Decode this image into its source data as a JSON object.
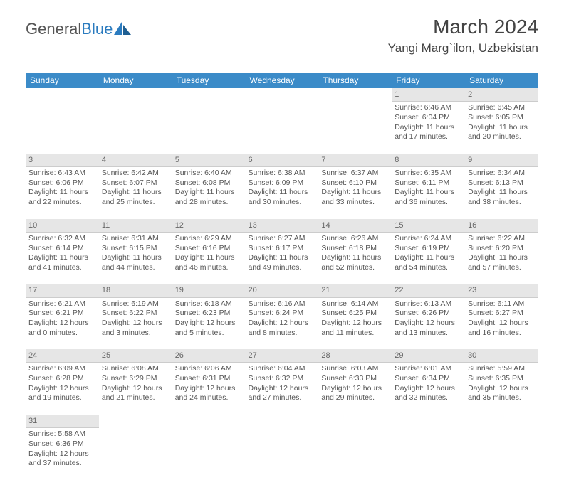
{
  "logo": {
    "text1": "General",
    "text2": "Blue"
  },
  "title": "March 2024",
  "location": "Yangi Marg`ilon, Uzbekistan",
  "colors": {
    "header_bg": "#3b8bc8",
    "header_fg": "#ffffff",
    "daynum_bg": "#e6e6e6",
    "text": "#555555",
    "logo_gray": "#555555",
    "logo_blue": "#2b7bbf",
    "page_bg": "#ffffff"
  },
  "fonts": {
    "title_size": 28,
    "location_size": 17,
    "dayhead_size": 12,
    "cell_size": 10.5
  },
  "dayHeaders": [
    "Sunday",
    "Monday",
    "Tuesday",
    "Wednesday",
    "Thursday",
    "Friday",
    "Saturday"
  ],
  "weeks": [
    {
      "nums": [
        "",
        "",
        "",
        "",
        "",
        "1",
        "2"
      ],
      "cells": [
        null,
        null,
        null,
        null,
        null,
        {
          "sunrise": "Sunrise: 6:46 AM",
          "sunset": "Sunset: 6:04 PM",
          "day1": "Daylight: 11 hours",
          "day2": "and 17 minutes."
        },
        {
          "sunrise": "Sunrise: 6:45 AM",
          "sunset": "Sunset: 6:05 PM",
          "day1": "Daylight: 11 hours",
          "day2": "and 20 minutes."
        }
      ]
    },
    {
      "nums": [
        "3",
        "4",
        "5",
        "6",
        "7",
        "8",
        "9"
      ],
      "cells": [
        {
          "sunrise": "Sunrise: 6:43 AM",
          "sunset": "Sunset: 6:06 PM",
          "day1": "Daylight: 11 hours",
          "day2": "and 22 minutes."
        },
        {
          "sunrise": "Sunrise: 6:42 AM",
          "sunset": "Sunset: 6:07 PM",
          "day1": "Daylight: 11 hours",
          "day2": "and 25 minutes."
        },
        {
          "sunrise": "Sunrise: 6:40 AM",
          "sunset": "Sunset: 6:08 PM",
          "day1": "Daylight: 11 hours",
          "day2": "and 28 minutes."
        },
        {
          "sunrise": "Sunrise: 6:38 AM",
          "sunset": "Sunset: 6:09 PM",
          "day1": "Daylight: 11 hours",
          "day2": "and 30 minutes."
        },
        {
          "sunrise": "Sunrise: 6:37 AM",
          "sunset": "Sunset: 6:10 PM",
          "day1": "Daylight: 11 hours",
          "day2": "and 33 minutes."
        },
        {
          "sunrise": "Sunrise: 6:35 AM",
          "sunset": "Sunset: 6:11 PM",
          "day1": "Daylight: 11 hours",
          "day2": "and 36 minutes."
        },
        {
          "sunrise": "Sunrise: 6:34 AM",
          "sunset": "Sunset: 6:13 PM",
          "day1": "Daylight: 11 hours",
          "day2": "and 38 minutes."
        }
      ]
    },
    {
      "nums": [
        "10",
        "11",
        "12",
        "13",
        "14",
        "15",
        "16"
      ],
      "cells": [
        {
          "sunrise": "Sunrise: 6:32 AM",
          "sunset": "Sunset: 6:14 PM",
          "day1": "Daylight: 11 hours",
          "day2": "and 41 minutes."
        },
        {
          "sunrise": "Sunrise: 6:31 AM",
          "sunset": "Sunset: 6:15 PM",
          "day1": "Daylight: 11 hours",
          "day2": "and 44 minutes."
        },
        {
          "sunrise": "Sunrise: 6:29 AM",
          "sunset": "Sunset: 6:16 PM",
          "day1": "Daylight: 11 hours",
          "day2": "and 46 minutes."
        },
        {
          "sunrise": "Sunrise: 6:27 AM",
          "sunset": "Sunset: 6:17 PM",
          "day1": "Daylight: 11 hours",
          "day2": "and 49 minutes."
        },
        {
          "sunrise": "Sunrise: 6:26 AM",
          "sunset": "Sunset: 6:18 PM",
          "day1": "Daylight: 11 hours",
          "day2": "and 52 minutes."
        },
        {
          "sunrise": "Sunrise: 6:24 AM",
          "sunset": "Sunset: 6:19 PM",
          "day1": "Daylight: 11 hours",
          "day2": "and 54 minutes."
        },
        {
          "sunrise": "Sunrise: 6:22 AM",
          "sunset": "Sunset: 6:20 PM",
          "day1": "Daylight: 11 hours",
          "day2": "and 57 minutes."
        }
      ]
    },
    {
      "nums": [
        "17",
        "18",
        "19",
        "20",
        "21",
        "22",
        "23"
      ],
      "cells": [
        {
          "sunrise": "Sunrise: 6:21 AM",
          "sunset": "Sunset: 6:21 PM",
          "day1": "Daylight: 12 hours",
          "day2": "and 0 minutes."
        },
        {
          "sunrise": "Sunrise: 6:19 AM",
          "sunset": "Sunset: 6:22 PM",
          "day1": "Daylight: 12 hours",
          "day2": "and 3 minutes."
        },
        {
          "sunrise": "Sunrise: 6:18 AM",
          "sunset": "Sunset: 6:23 PM",
          "day1": "Daylight: 12 hours",
          "day2": "and 5 minutes."
        },
        {
          "sunrise": "Sunrise: 6:16 AM",
          "sunset": "Sunset: 6:24 PM",
          "day1": "Daylight: 12 hours",
          "day2": "and 8 minutes."
        },
        {
          "sunrise": "Sunrise: 6:14 AM",
          "sunset": "Sunset: 6:25 PM",
          "day1": "Daylight: 12 hours",
          "day2": "and 11 minutes."
        },
        {
          "sunrise": "Sunrise: 6:13 AM",
          "sunset": "Sunset: 6:26 PM",
          "day1": "Daylight: 12 hours",
          "day2": "and 13 minutes."
        },
        {
          "sunrise": "Sunrise: 6:11 AM",
          "sunset": "Sunset: 6:27 PM",
          "day1": "Daylight: 12 hours",
          "day2": "and 16 minutes."
        }
      ]
    },
    {
      "nums": [
        "24",
        "25",
        "26",
        "27",
        "28",
        "29",
        "30"
      ],
      "cells": [
        {
          "sunrise": "Sunrise: 6:09 AM",
          "sunset": "Sunset: 6:28 PM",
          "day1": "Daylight: 12 hours",
          "day2": "and 19 minutes."
        },
        {
          "sunrise": "Sunrise: 6:08 AM",
          "sunset": "Sunset: 6:29 PM",
          "day1": "Daylight: 12 hours",
          "day2": "and 21 minutes."
        },
        {
          "sunrise": "Sunrise: 6:06 AM",
          "sunset": "Sunset: 6:31 PM",
          "day1": "Daylight: 12 hours",
          "day2": "and 24 minutes."
        },
        {
          "sunrise": "Sunrise: 6:04 AM",
          "sunset": "Sunset: 6:32 PM",
          "day1": "Daylight: 12 hours",
          "day2": "and 27 minutes."
        },
        {
          "sunrise": "Sunrise: 6:03 AM",
          "sunset": "Sunset: 6:33 PM",
          "day1": "Daylight: 12 hours",
          "day2": "and 29 minutes."
        },
        {
          "sunrise": "Sunrise: 6:01 AM",
          "sunset": "Sunset: 6:34 PM",
          "day1": "Daylight: 12 hours",
          "day2": "and 32 minutes."
        },
        {
          "sunrise": "Sunrise: 5:59 AM",
          "sunset": "Sunset: 6:35 PM",
          "day1": "Daylight: 12 hours",
          "day2": "and 35 minutes."
        }
      ]
    },
    {
      "nums": [
        "31",
        "",
        "",
        "",
        "",
        "",
        ""
      ],
      "cells": [
        {
          "sunrise": "Sunrise: 5:58 AM",
          "sunset": "Sunset: 6:36 PM",
          "day1": "Daylight: 12 hours",
          "day2": "and 37 minutes."
        },
        null,
        null,
        null,
        null,
        null,
        null
      ]
    }
  ]
}
